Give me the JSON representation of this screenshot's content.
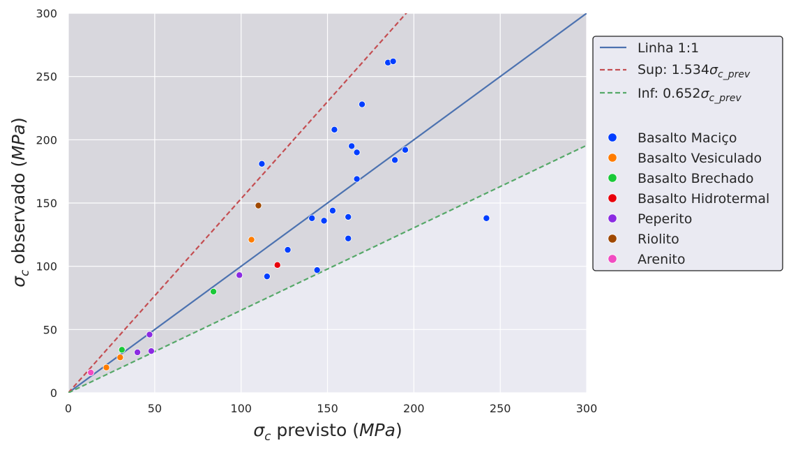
{
  "chart_data": {
    "type": "scatter",
    "xlim": [
      0,
      300
    ],
    "ylim": [
      0,
      300
    ],
    "x_ticks": [
      0,
      50,
      100,
      150,
      200,
      250,
      300
    ],
    "y_ticks": [
      0,
      50,
      100,
      150,
      200,
      250,
      300
    ],
    "grid": true,
    "legend_position": "right",
    "xlabel": {
      "sym": "σ",
      "sub": "c",
      "text": " previsto (",
      "unit": "MPa",
      "close": ")"
    },
    "ylabel": {
      "sym": "σ",
      "sub": "c",
      "text": " observado (",
      "unit": "MPa",
      "close": ")"
    },
    "lines": [
      {
        "label": "Linha 1:1",
        "slope": 1.0,
        "style": "solid",
        "color": "#4c72b0"
      },
      {
        "label_prefix": "Sup: 1.534",
        "label_sym": "σ",
        "label_sub": "c_prev",
        "slope": 1.534,
        "style": "dashed",
        "color": "#c44e52"
      },
      {
        "label_prefix": "Inf: 0.652",
        "label_sym": "σ",
        "label_sub": "c_prev",
        "slope": 0.652,
        "style": "dashed",
        "color": "#55a868"
      }
    ],
    "series": [
      {
        "name": "Basalto Maciço",
        "color": "#023eff",
        "points": [
          [
            185,
            261
          ],
          [
            188,
            262
          ],
          [
            170,
            228
          ],
          [
            154,
            208
          ],
          [
            164,
            195
          ],
          [
            167,
            190
          ],
          [
            195,
            192
          ],
          [
            189,
            184
          ],
          [
            112,
            181
          ],
          [
            167,
            169
          ],
          [
            153,
            144
          ],
          [
            141,
            138
          ],
          [
            162,
            139
          ],
          [
            148,
            136
          ],
          [
            162,
            122
          ],
          [
            127,
            113
          ],
          [
            144,
            97
          ],
          [
            115,
            92
          ],
          [
            242,
            138
          ]
        ]
      },
      {
        "name": "Basalto Vesiculado",
        "color": "#ff7c00",
        "points": [
          [
            106,
            121
          ],
          [
            30,
            28
          ],
          [
            22,
            20
          ]
        ]
      },
      {
        "name": "Basalto Brechado",
        "color": "#1ac938",
        "points": [
          [
            84,
            80
          ],
          [
            31,
            34
          ]
        ]
      },
      {
        "name": "Basalto Hidrotermal",
        "color": "#e8000b",
        "points": [
          [
            121,
            101
          ]
        ]
      },
      {
        "name": "Peperito",
        "color": "#8b2be2",
        "points": [
          [
            99,
            93
          ],
          [
            47,
            46
          ],
          [
            40,
            32
          ],
          [
            48,
            33
          ]
        ]
      },
      {
        "name": "Riolito",
        "color": "#9f4800",
        "points": [
          [
            110,
            148
          ]
        ]
      },
      {
        "name": "Arenito",
        "color": "#f14cc1",
        "points": [
          [
            13,
            16
          ]
        ]
      }
    ]
  },
  "colors": {
    "plot_background": "#eaeaf2",
    "shade_above_lower": "#d8d7dd",
    "grid": "#ffffff",
    "legend_bg": "#eaeaf2",
    "legend_border": "#222222"
  }
}
